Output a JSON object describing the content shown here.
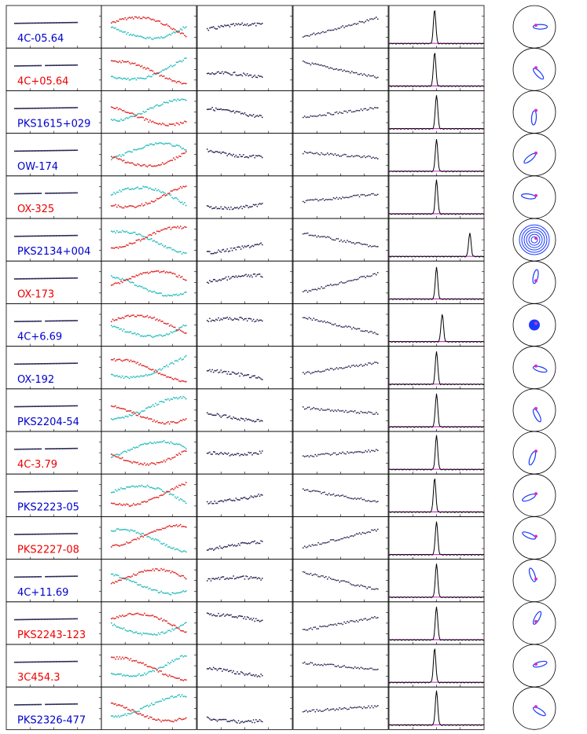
{
  "chart_data": {
    "type": "multi-panel",
    "columns": [
      "flux",
      "polarization",
      "percent-polarization",
      "angle",
      "rm-spectrum",
      "polar-plot"
    ],
    "colors": {
      "blue_label": "#0000cc",
      "red_label": "#ee0000",
      "cyan": "#22bbbb",
      "red": "#e02020",
      "navy": "#1a1a4a",
      "magenta": "#cc33cc",
      "circle_blue": "#1a3aff"
    },
    "sources": [
      {
        "name": "4C-05.64",
        "label_color": "blue",
        "peak": 0.48,
        "peak_height": 0.8,
        "polar_shape": "loop-ne"
      },
      {
        "name": "4C+05.64",
        "label_color": "red",
        "peak": 0.48,
        "peak_height": 0.8,
        "polar_shape": "line-sw"
      },
      {
        "name": "PKS1615+029",
        "label_color": "blue",
        "peak": 0.5,
        "peak_height": 0.8,
        "polar_shape": "line-ne"
      },
      {
        "name": "OW-174",
        "label_color": "blue",
        "peak": 0.5,
        "peak_height": 0.75,
        "polar_shape": "loop-s"
      },
      {
        "name": "OX-325",
        "label_color": "red",
        "peak": 0.5,
        "peak_height": 0.8,
        "polar_shape": "loop-sw"
      },
      {
        "name": "PKS2134+004",
        "label_color": "blue",
        "peak": 0.85,
        "peak_height": 0.55,
        "polar_shape": "spiral"
      },
      {
        "name": "OX-173",
        "label_color": "red",
        "peak": 0.5,
        "peak_height": 0.75,
        "polar_shape": "line-n"
      },
      {
        "name": "4C+6.69",
        "label_color": "blue",
        "peak": 0.56,
        "peak_height": 0.65,
        "polar_shape": "blob"
      },
      {
        "name": "OX-192",
        "label_color": "blue",
        "peak": 0.5,
        "peak_height": 0.78,
        "polar_shape": "loop-w"
      },
      {
        "name": "PKS2204-54",
        "label_color": "blue",
        "peak": 0.5,
        "peak_height": 0.78,
        "polar_shape": "loop-n"
      },
      {
        "name": "4C-3.79",
        "label_color": "red",
        "peak": 0.5,
        "peak_height": 0.8,
        "polar_shape": "loop-nw"
      },
      {
        "name": "PKS2223-05",
        "label_color": "blue",
        "peak": 0.48,
        "peak_height": 0.8,
        "polar_shape": "ellipse"
      },
      {
        "name": "PKS2227-08",
        "label_color": "red",
        "peak": 0.5,
        "peak_height": 0.78,
        "polar_shape": "line-nw"
      },
      {
        "name": "4C+11.69",
        "label_color": "blue",
        "peak": 0.5,
        "peak_height": 0.78,
        "polar_shape": "line-w"
      },
      {
        "name": "PKS2243-123",
        "label_color": "red",
        "peak": 0.5,
        "peak_height": 0.78,
        "polar_shape": "line-w2"
      },
      {
        "name": "3C454.3",
        "label_color": "red",
        "peak": 0.48,
        "peak_height": 0.8,
        "polar_shape": "loop-n2"
      },
      {
        "name": "PKS2326-477",
        "label_color": "blue",
        "peak": 0.5,
        "peak_height": 0.8,
        "polar_shape": "line-se"
      }
    ]
  }
}
